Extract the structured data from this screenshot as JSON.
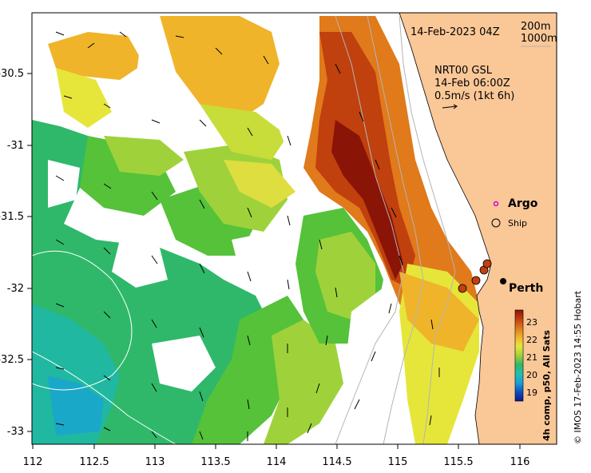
{
  "map": {
    "title_date": "14-Feb-2023 04Z",
    "depth_legend": [
      "200m",
      "1000m"
    ],
    "current_product": "NRT00 GSL",
    "current_time": "14-Feb 06:00Z",
    "current_scale": "0.5m/s (1kt 6h)",
    "markers": {
      "argo_label": "Argo",
      "ship_label": "Ship",
      "city_label": "Perth"
    },
    "x_ticks": [
      "112",
      "112.5",
      "113",
      "113.5",
      "114",
      "114.5",
      "115",
      "115.5",
      "116"
    ],
    "y_ticks": [
      "-30.5",
      "-31",
      "-31.5",
      "-32",
      "-32.5",
      "-33"
    ],
    "colorbar": {
      "title": "4h comp, p50, All Sats",
      "ticks": [
        "23",
        "22",
        "21",
        "20",
        "19"
      ],
      "colors": [
        "#0b1a8c",
        "#0b4fc2",
        "#1aa0d8",
        "#20c0b0",
        "#2fb86a",
        "#55c23a",
        "#9fd23a",
        "#e6e63a",
        "#f0b42a",
        "#e07a1a",
        "#c0400e",
        "#8a1406"
      ]
    },
    "credit": "© IMOS 17-Feb-2023 14:55 Hobart",
    "colors": {
      "land": "#fac797",
      "coast": "#000000",
      "isobath": "#b4b4b4"
    }
  }
}
